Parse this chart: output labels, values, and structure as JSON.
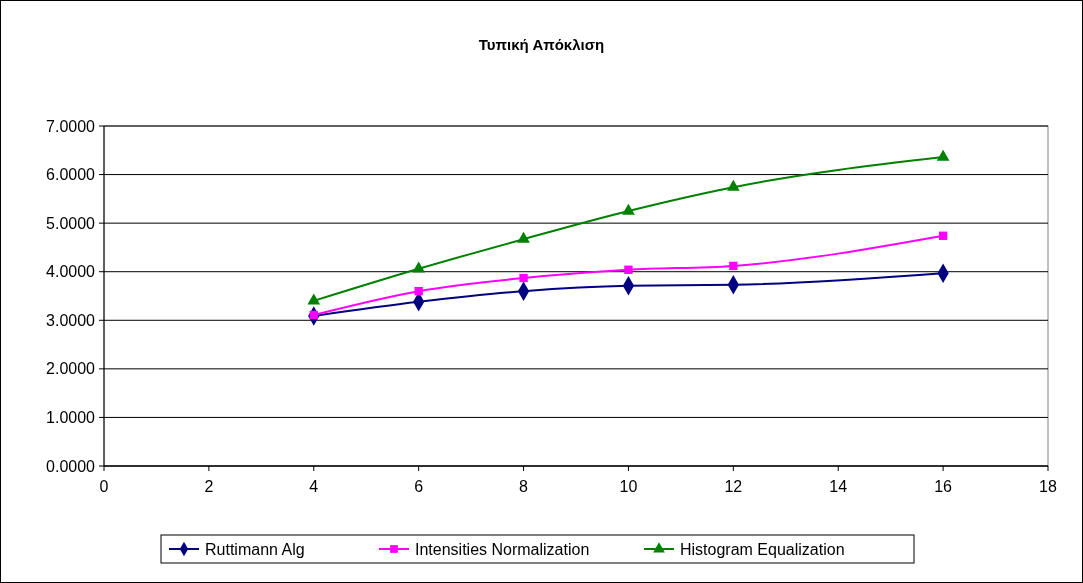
{
  "chart_data": {
    "type": "line",
    "title": "Τυπική Απόκλιση",
    "x": [
      4,
      6,
      8,
      10,
      12,
      16
    ],
    "series": [
      {
        "name": "Ruttimann Alg",
        "color": "#000080",
        "marker": "diamond",
        "values": [
          3.09,
          3.38,
          3.6,
          3.71,
          3.73,
          3.97
        ]
      },
      {
        "name": "Intensities Normalization",
        "color": "#ff00ff",
        "marker": "square",
        "values": [
          3.11,
          3.6,
          3.87,
          4.04,
          4.12,
          4.74
        ]
      },
      {
        "name": "Histogram Equalization",
        "color": "#008000",
        "marker": "triangle",
        "values": [
          3.4,
          4.06,
          4.67,
          5.25,
          5.74,
          6.36
        ]
      }
    ],
    "xlim": [
      0,
      18
    ],
    "xticks": [
      0,
      2,
      4,
      6,
      8,
      10,
      12,
      14,
      16,
      18
    ],
    "ylim": [
      0,
      7
    ],
    "yticks": [
      {
        "value": 0,
        "label": "0.0000"
      },
      {
        "value": 1,
        "label": "1.0000"
      },
      {
        "value": 2,
        "label": "2.0000"
      },
      {
        "value": 3,
        "label": "3.0000"
      },
      {
        "value": 4,
        "label": "4.0000"
      },
      {
        "value": 5,
        "label": "5.0000"
      },
      {
        "value": 6,
        "label": "6.0000"
      },
      {
        "value": 7,
        "label": "7.0000"
      }
    ],
    "grid": "y",
    "legend": "bottom",
    "line_style": "solid"
  }
}
